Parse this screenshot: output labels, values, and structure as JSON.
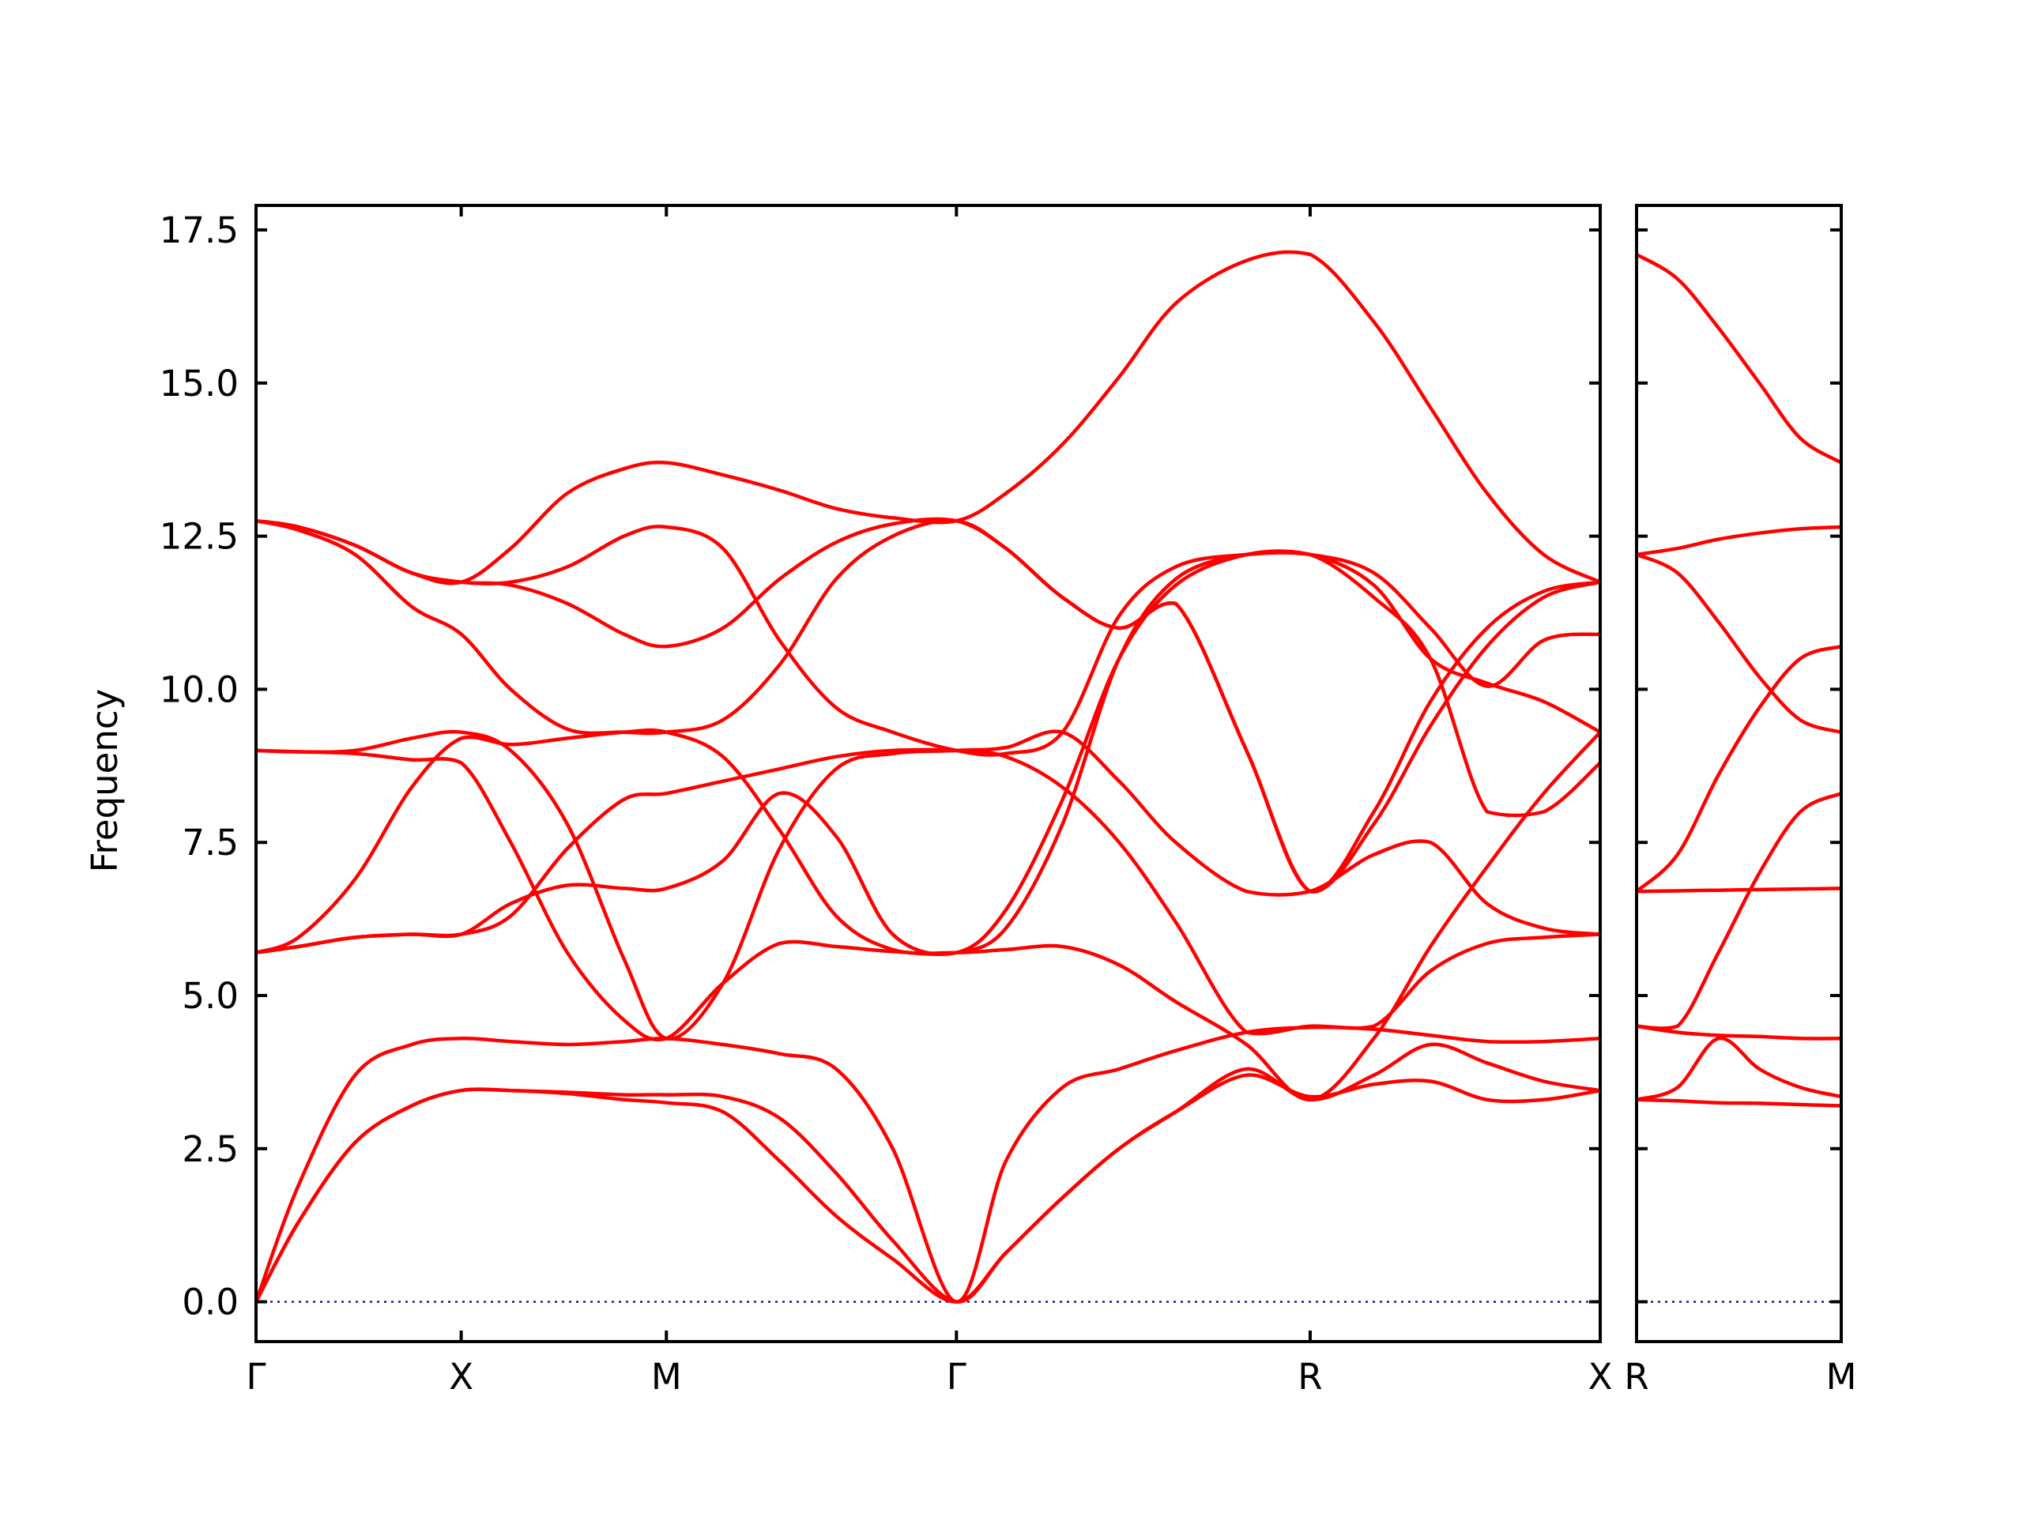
{
  "chart_data": {
    "type": "line",
    "title": "",
    "ylabel": "Frequency",
    "xlabel": "",
    "ylim": [
      -0.65,
      17.9
    ],
    "yticks": [
      0.0,
      2.5,
      5.0,
      7.5,
      10.0,
      12.5,
      15.0,
      17.5
    ],
    "ytick_labels": [
      "0.0",
      "2.5",
      "5.0",
      "7.5",
      "10.0",
      "12.5",
      "15.0",
      "17.5"
    ],
    "grid": false,
    "legend": "none",
    "colors": {
      "bands": "#ff0000",
      "zero_line": "#00008b"
    },
    "zero_line": 0,
    "panels": [
      {
        "x_range": [
          0,
          9.5
        ],
        "high_symmetry_points": [
          {
            "label": "Γ",
            "x": 0
          },
          {
            "label": "X",
            "x": 1.45
          },
          {
            "label": "M",
            "x": 2.9
          },
          {
            "label": "Γ",
            "x": 4.95
          },
          {
            "label": "R",
            "x": 7.45
          },
          {
            "label": "X",
            "x": 9.5
          }
        ],
        "series": [
          {
            "x": [
              0,
              0.3,
              0.7,
              1.1,
              1.45,
              1.8,
              2.2,
              2.6,
              2.9,
              3.3,
              3.7,
              4.1,
              4.5,
              4.95,
              5.3,
              5.7,
              6.1,
              6.5,
              7.0,
              7.45,
              7.9,
              8.3,
              8.7,
              9.1,
              9.5
            ],
            "y": [
              0,
              1.3,
              2.6,
              3.2,
              3.45,
              3.45,
              3.4,
              3.3,
              3.25,
              3.1,
              2.3,
              1.4,
              0.7,
              0,
              0.8,
              1.7,
              2.5,
              3.1,
              3.7,
              3.35,
              3.55,
              3.6,
              3.3,
              3.3,
              3.45
            ]
          },
          {
            "x": [
              0,
              0.3,
              0.7,
              1.1,
              1.45,
              1.8,
              2.2,
              2.6,
              2.9,
              3.3,
              3.7,
              4.1,
              4.5,
              4.95,
              5.3,
              5.7,
              6.1,
              6.5,
              7.0,
              7.45,
              7.9,
              8.3,
              8.7,
              9.1,
              9.5
            ],
            "y": [
              0,
              1.3,
              2.6,
              3.2,
              3.45,
              3.45,
              3.42,
              3.38,
              3.38,
              3.35,
              3.0,
              2.1,
              1.0,
              0,
              0.8,
              1.7,
              2.5,
              3.1,
              3.8,
              3.3,
              3.7,
              4.2,
              3.9,
              3.6,
              3.45
            ]
          },
          {
            "x": [
              0,
              0.3,
              0.7,
              1.1,
              1.45,
              1.8,
              2.2,
              2.6,
              2.9,
              3.3,
              3.7,
              4.1,
              4.5,
              4.95,
              5.3,
              5.7,
              6.1,
              6.5,
              7.0,
              7.45,
              7.9,
              8.3,
              8.7,
              9.1,
              9.5
            ],
            "y": [
              0,
              1.9,
              3.7,
              4.2,
              4.3,
              4.25,
              4.2,
              4.25,
              4.3,
              4.2,
              4.05,
              3.8,
              2.5,
              0,
              2.3,
              3.5,
              3.8,
              4.1,
              4.4,
              4.48,
              4.45,
              4.35,
              4.25,
              4.25,
              4.3
            ]
          },
          {
            "x": [
              0,
              0.3,
              0.7,
              1.1,
              1.45,
              1.8,
              2.2,
              2.6,
              2.9,
              3.3,
              3.7,
              4.1,
              4.5,
              4.95,
              5.3,
              5.7,
              6.1,
              6.5,
              7.0,
              7.45,
              7.9,
              8.3,
              8.7,
              9.1,
              9.5
            ],
            "y": [
              5.7,
              5.8,
              5.95,
              6.0,
              6.0,
              6.3,
              7.4,
              8.2,
              8.3,
              8.5,
              8.7,
              8.9,
              9.0,
              9.0,
              8.9,
              8.4,
              7.5,
              6.2,
              4.4,
              4.5,
              4.5,
              5.4,
              5.85,
              5.95,
              6.0
            ]
          },
          {
            "x": [
              0,
              0.3,
              0.7,
              1.1,
              1.45,
              1.8,
              2.2,
              2.6,
              2.9,
              3.3,
              3.7,
              4.1,
              4.5,
              4.95,
              5.3,
              5.7,
              6.1,
              6.5,
              7.0,
              7.45,
              7.9,
              8.3,
              8.7,
              9.1,
              9.5
            ],
            "y": [
              5.7,
              5.8,
              5.95,
              6.0,
              6.0,
              6.5,
              6.8,
              6.75,
              6.75,
              7.2,
              8.3,
              7.6,
              6.0,
              5.7,
              6.4,
              8.2,
              10.5,
              11.7,
              12.2,
              12.2,
              11.5,
              10.5,
              8.0,
              8.0,
              8.8
            ]
          },
          {
            "x": [
              0,
              0.3,
              0.7,
              1.1,
              1.45,
              1.8,
              2.2,
              2.6,
              2.9,
              3.3,
              3.7,
              4.1,
              4.5,
              4.95,
              5.3,
              5.7,
              6.1,
              6.5,
              7.0,
              7.45,
              7.9,
              8.3,
              8.7,
              9.1,
              9.5
            ],
            "y": [
              5.7,
              5.95,
              6.9,
              8.4,
              9.2,
              9.1,
              9.2,
              9.3,
              9.3,
              8.9,
              7.7,
              6.3,
              5.75,
              5.7,
              5.75,
              5.8,
              5.5,
              4.9,
              4.2,
              3.3,
              4.3,
              5.8,
              7.1,
              8.3,
              9.3
            ]
          },
          {
            "x": [
              0,
              0.3,
              0.7,
              1.1,
              1.45,
              1.8,
              2.2,
              2.6,
              2.9,
              3.3,
              3.7,
              4.1,
              4.5,
              4.95,
              5.3,
              5.7,
              6.1,
              6.5,
              7.0,
              7.45,
              7.9,
              8.3,
              8.7,
              9.1,
              9.5
            ],
            "y": [
              9.0,
              8.98,
              8.95,
              8.85,
              8.8,
              7.5,
              5.7,
              4.6,
              4.3,
              5.2,
              5.85,
              5.8,
              5.72,
              5.7,
              6.1,
              7.8,
              10.5,
              11.8,
              12.2,
              12.2,
              11.7,
              10.5,
              10.1,
              9.8,
              9.3
            ]
          },
          {
            "x": [
              0,
              0.3,
              0.7,
              1.1,
              1.45,
              1.8,
              2.2,
              2.6,
              2.9,
              3.3,
              3.7,
              4.1,
              4.5,
              4.95,
              5.3,
              5.7,
              6.1,
              6.5,
              7.0,
              7.45,
              7.9,
              8.3,
              8.7,
              9.1,
              9.5
            ],
            "y": [
              9.0,
              8.98,
              9.0,
              9.2,
              9.3,
              9.0,
              7.8,
              5.6,
              4.3,
              5.2,
              7.4,
              8.7,
              8.95,
              9.0,
              9.05,
              9.3,
              8.5,
              7.5,
              6.7,
              6.7,
              7.3,
              7.5,
              6.5,
              6.1,
              6.0
            ]
          },
          {
            "x": [
              0,
              0.3,
              0.7,
              1.1,
              1.45,
              1.8,
              2.2,
              2.6,
              2.9,
              3.3,
              3.7,
              4.1,
              4.5,
              4.95,
              5.3,
              5.7,
              6.1,
              6.5,
              7.0,
              7.45,
              7.9,
              8.3,
              8.7,
              9.1,
              9.5
            ],
            "y": [
              12.75,
              12.6,
              12.2,
              11.35,
              10.9,
              10.0,
              9.35,
              9.3,
              9.3,
              9.5,
              10.4,
              11.8,
              12.5,
              12.75,
              12.3,
              11.5,
              11.0,
              11.4,
              9.0,
              6.7,
              7.8,
              9.4,
              10.7,
              11.5,
              11.75
            ]
          },
          {
            "x": [
              0,
              0.3,
              0.7,
              1.1,
              1.45,
              1.8,
              2.2,
              2.6,
              2.9,
              3.3,
              3.7,
              4.1,
              4.5,
              4.95,
              5.3,
              5.7,
              6.1,
              6.5,
              7.0,
              7.45,
              7.9,
              8.3,
              8.7,
              9.1,
              9.5
            ],
            "y": [
              12.75,
              12.65,
              12.35,
              11.9,
              11.75,
              11.7,
              11.4,
              10.9,
              10.7,
              11.0,
              11.8,
              12.4,
              12.7,
              12.75,
              12.3,
              11.5,
              11.0,
              11.4,
              9.0,
              6.7,
              8.0,
              9.8,
              11.0,
              11.6,
              11.75
            ]
          },
          {
            "x": [
              0,
              0.3,
              0.7,
              1.1,
              1.45,
              1.8,
              2.2,
              2.6,
              2.9,
              3.3,
              3.7,
              4.1,
              4.5,
              4.95,
              5.3,
              5.7,
              6.1,
              6.5,
              7.0,
              7.45,
              7.9,
              8.3,
              8.7,
              9.1,
              9.5
            ],
            "y": [
              12.75,
              12.65,
              12.35,
              11.9,
              11.75,
              11.75,
              12.0,
              12.5,
              12.65,
              12.3,
              10.8,
              9.7,
              9.3,
              9.0,
              8.95,
              9.3,
              11.2,
              12.0,
              12.2,
              12.2,
              11.9,
              11.0,
              10.05,
              10.8,
              10.9
            ]
          },
          {
            "x": [
              0,
              0.3,
              0.7,
              1.1,
              1.45,
              1.8,
              2.2,
              2.6,
              2.9,
              3.3,
              3.7,
              4.1,
              4.5,
              4.95,
              5.3,
              5.7,
              6.1,
              6.5,
              7.0,
              7.45,
              7.9,
              8.3,
              8.7,
              9.1,
              9.5
            ],
            "y": [
              12.75,
              12.65,
              12.35,
              11.9,
              11.75,
              12.3,
              13.2,
              13.6,
              13.7,
              13.5,
              13.25,
              12.95,
              12.8,
              12.75,
              13.2,
              14.0,
              15.1,
              16.3,
              17.0,
              17.1,
              16.0,
              14.6,
              13.2,
              12.2,
              11.75
            ]
          }
        ]
      },
      {
        "x_range": [
          0,
          1
        ],
        "high_symmetry_points": [
          {
            "label": "R",
            "x": 0
          },
          {
            "label": "M",
            "x": 1
          }
        ],
        "series": [
          {
            "x": [
              0,
              0.2,
              0.4,
              0.6,
              0.8,
              1.0
            ],
            "y": [
              3.3,
              3.28,
              3.25,
              3.24,
              3.22,
              3.2
            ]
          },
          {
            "x": [
              0,
              0.2,
              0.4,
              0.6,
              0.8,
              1.0
            ],
            "y": [
              3.3,
              3.5,
              4.3,
              3.8,
              3.5,
              3.35
            ]
          },
          {
            "x": [
              0,
              0.2,
              0.4,
              0.6,
              0.8,
              1.0
            ],
            "y": [
              4.5,
              4.4,
              4.35,
              4.33,
              4.3,
              4.3
            ]
          },
          {
            "x": [
              0,
              0.2,
              0.4,
              0.6,
              0.8,
              1.0
            ],
            "y": [
              4.5,
              4.5,
              5.7,
              7.0,
              8.0,
              8.3
            ]
          },
          {
            "x": [
              0,
              0.2,
              0.4,
              0.6,
              0.8,
              1.0
            ],
            "y": [
              6.7,
              6.71,
              6.72,
              6.73,
              6.74,
              6.75
            ]
          },
          {
            "x": [
              0,
              0.2,
              0.4,
              0.6,
              0.8,
              1.0
            ],
            "y": [
              6.7,
              7.3,
              8.6,
              9.7,
              10.5,
              10.7
            ]
          },
          {
            "x": [
              0,
              0.2,
              0.4,
              0.6,
              0.8,
              1.0
            ],
            "y": [
              12.2,
              11.9,
              11.1,
              10.2,
              9.5,
              9.3
            ]
          },
          {
            "x": [
              0,
              0.2,
              0.4,
              0.6,
              0.8,
              1.0
            ],
            "y": [
              12.2,
              12.3,
              12.45,
              12.55,
              12.62,
              12.65
            ]
          },
          {
            "x": [
              0,
              0.2,
              0.4,
              0.6,
              0.8,
              1.0
            ],
            "y": [
              17.1,
              16.7,
              15.9,
              15.0,
              14.1,
              13.7
            ]
          }
        ]
      }
    ]
  }
}
